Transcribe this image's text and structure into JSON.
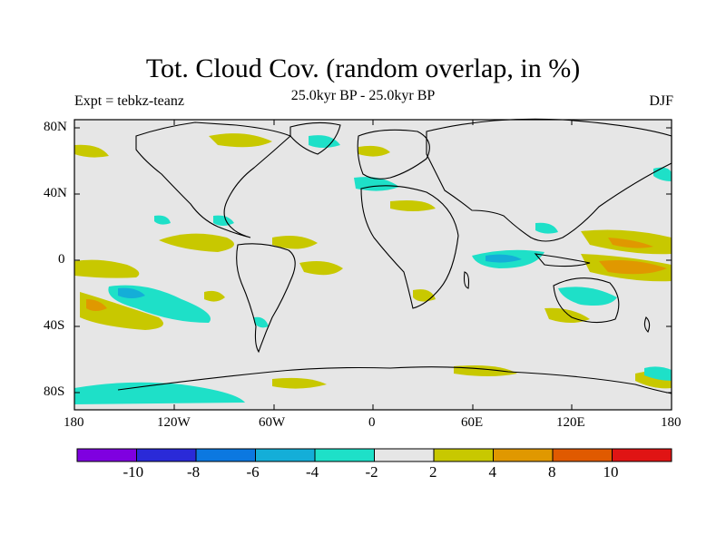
{
  "title": "Tot. Cloud Cov. (random overlap, in %)",
  "subtitle": "25.0kyr BP - 25.0kyr BP",
  "experiment": "Expt = tebkz-teanz",
  "season": "DJF",
  "lat_labels": [
    "80N",
    "40N",
    "0",
    "40S",
    "80S"
  ],
  "lon_labels": [
    "180",
    "120W",
    "60W",
    "0",
    "60E",
    "120E",
    "180"
  ],
  "colorbar": {
    "colors": [
      "#7f00e0",
      "#2a2ad8",
      "#0c78e0",
      "#14aed8",
      "#1ee0c8",
      "#e6e6e6",
      "#c8c800",
      "#e09800",
      "#e05a00",
      "#e01414"
    ],
    "labels": [
      "-10",
      "-8",
      "-6",
      "-4",
      "-2",
      "2",
      "4",
      "8",
      "10"
    ]
  },
  "colors": {
    "neutral": "#e6e6e6",
    "pos_small": "#c8c800",
    "pos_mid": "#e09800",
    "pos_high": "#e05a00",
    "neg_small": "#1ee0c8",
    "neg_mid": "#14aed8"
  }
}
